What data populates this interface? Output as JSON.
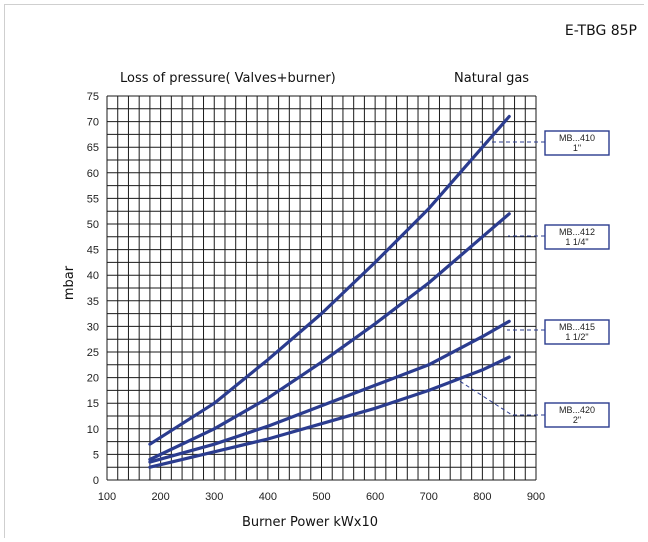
{
  "model": "E-TBG 85P",
  "chart_data": {
    "type": "line",
    "title": "Loss of pressure( Valves+burner)",
    "subtitle": "Natural gas",
    "xlabel": "Burner Power  kWx10",
    "ylabel": "mbar",
    "xlim": [
      100,
      900
    ],
    "ylim": [
      0,
      75
    ],
    "xticks": [
      100,
      200,
      300,
      400,
      500,
      600,
      700,
      800,
      900
    ],
    "yticks": [
      0,
      5,
      10,
      15,
      20,
      25,
      30,
      35,
      40,
      45,
      50,
      55,
      60,
      65,
      70,
      75
    ],
    "grid": true,
    "series": [
      {
        "name": "MB...410 1\"",
        "name_line1": "MB...410",
        "name_line2": "1\"",
        "x": [
          180,
          300,
          400,
          500,
          600,
          700,
          800,
          850
        ],
        "y": [
          7,
          15,
          23.5,
          32.5,
          42.5,
          53,
          65,
          71
        ]
      },
      {
        "name": "MB...412 1 1/4\"",
        "name_line1": "MB...412",
        "name_line2": "1  1/4\"",
        "x": [
          180,
          300,
          400,
          500,
          600,
          700,
          800,
          850
        ],
        "y": [
          4,
          10,
          16,
          23,
          30.5,
          38.5,
          47.5,
          52
        ]
      },
      {
        "name": "MB...415 1 1/2\"",
        "name_line1": "MB...415",
        "name_line2": "1  1/2\"",
        "x": [
          180,
          300,
          400,
          500,
          600,
          700,
          800,
          850
        ],
        "y": [
          3.5,
          7,
          10.5,
          14.5,
          18.5,
          22.5,
          28,
          31
        ]
      },
      {
        "name": "MB...420 2\"",
        "name_line1": "MB...420",
        "name_line2": "2\"",
        "x": [
          180,
          300,
          400,
          500,
          600,
          700,
          800,
          850
        ],
        "y": [
          2.5,
          5.5,
          8,
          11,
          14,
          17.5,
          21.5,
          24
        ]
      }
    ]
  }
}
